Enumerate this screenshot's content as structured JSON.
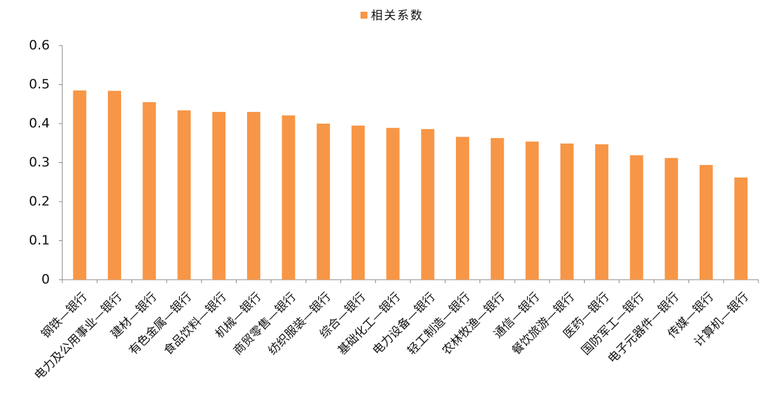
{
  "chart_data": {
    "type": "bar",
    "categories": [
      "钢铁—银行",
      "电力及公用事业—银行",
      "建材—银行",
      "有色金属—银行",
      "食品饮料—银行",
      "机械—银行",
      "商贸零售—银行",
      "纺织服装—银行",
      "综合—银行",
      "基础化工—银行",
      "电力设备—银行",
      "轻工制造—银行",
      "农林牧渔—银行",
      "通信—银行",
      "餐饮旅游—银行",
      "医药—银行",
      "国防军工—银行",
      "电子元器件—银行",
      "传媒—银行",
      "计算机—银行"
    ],
    "series": [
      {
        "name": "相关系数",
        "color": "#f79646",
        "values": [
          0.485,
          0.484,
          0.455,
          0.434,
          0.43,
          0.43,
          0.421,
          0.4,
          0.395,
          0.389,
          0.386,
          0.366,
          0.363,
          0.354,
          0.349,
          0.347,
          0.319,
          0.312,
          0.294,
          0.262
        ]
      }
    ],
    "ylim": [
      0,
      0.6
    ],
    "yticks": [
      0,
      0.1,
      0.2,
      0.3,
      0.4,
      0.5,
      0.6
    ],
    "legend": "top"
  }
}
